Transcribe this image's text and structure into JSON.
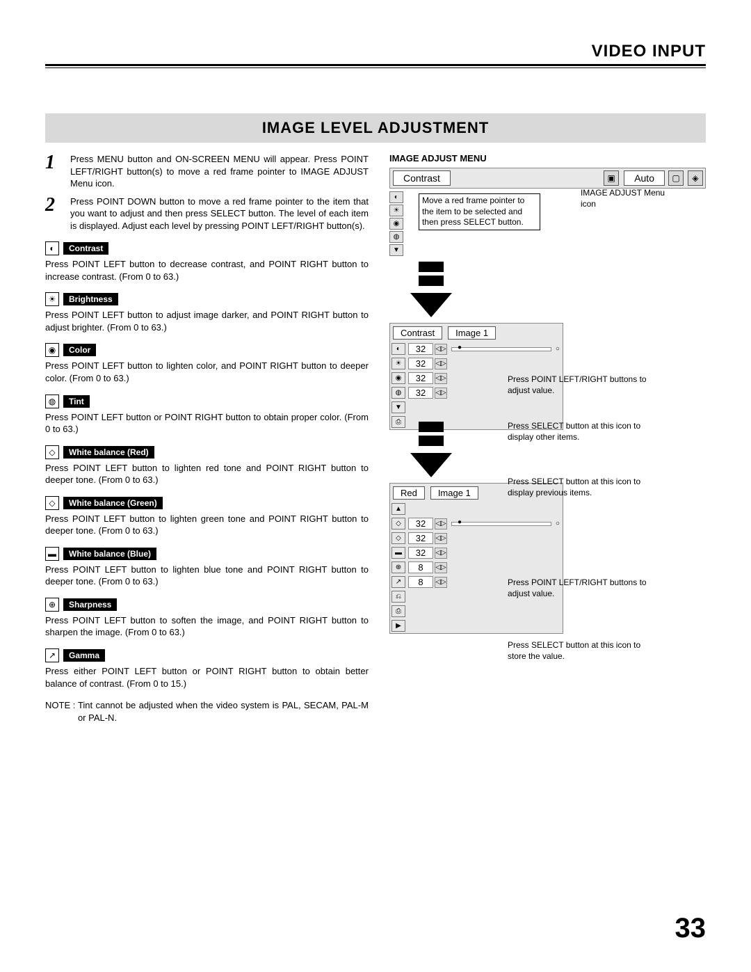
{
  "header": {
    "section": "VIDEO INPUT"
  },
  "banner": "IMAGE LEVEL ADJUSTMENT",
  "steps": [
    {
      "n": "1",
      "text": "Press MENU button and ON-SCREEN MENU will appear.  Press POINT LEFT/RIGHT button(s) to move a red frame pointer to IMAGE ADJUST Menu icon."
    },
    {
      "n": "2",
      "text": "Press POINT DOWN button to move a red frame pointer to the item that you want to adjust and then press SELECT button. The level of each item is displayed.  Adjust each level by pressing POINT LEFT/RIGHT button(s)."
    }
  ],
  "items": [
    {
      "icon": "◐",
      "label": "Contrast",
      "desc": "Press POINT LEFT button to decrease contrast, and POINT RIGHT button to increase contrast.  (From 0 to 63.)"
    },
    {
      "icon": "☀",
      "label": "Brightness",
      "desc": "Press POINT LEFT button to adjust image darker, and POINT RIGHT button to adjust brighter.  (From 0 to 63.)"
    },
    {
      "icon": "◉",
      "label": "Color",
      "desc": "Press POINT LEFT button to lighten color, and POINT RIGHT button to deeper color.  (From 0 to 63.)"
    },
    {
      "icon": "◍",
      "label": "Tint",
      "desc": "Press POINT LEFT button or POINT RIGHT button to obtain proper color.  (From 0 to 63.)"
    },
    {
      "icon": "◇",
      "label": "White balance (Red)",
      "desc": "Press POINT LEFT button to lighten red tone and POINT RIGHT button to deeper tone.  (From 0 to 63.)"
    },
    {
      "icon": "◇",
      "label": "White balance (Green)",
      "desc": "Press POINT LEFT button to lighten green tone and POINT RIGHT button to deeper tone.  (From 0 to 63.)"
    },
    {
      "icon": "▬",
      "label": "White balance (Blue)",
      "desc": "Press POINT LEFT button to lighten blue tone and POINT RIGHT button to deeper tone.  (From 0 to 63.)"
    },
    {
      "icon": "⊕",
      "label": "Sharpness",
      "desc": "Press POINT LEFT button to soften the image, and POINT RIGHT button to sharpen the image.  (From 0 to 63.)"
    },
    {
      "icon": "↗",
      "label": "Gamma",
      "desc": "Press either POINT LEFT button or POINT RIGHT button to obtain better balance of contrast.  (From 0 to 15.)"
    }
  ],
  "note": {
    "label": "NOTE : ",
    "text": "Tint cannot be adjusted when the video system is PAL, SECAM, PAL-M or PAL-N."
  },
  "right": {
    "heading": "IMAGE ADJUST MENU",
    "menubar": {
      "title": "Contrast",
      "mode": "Auto"
    },
    "callout1": "Move a red frame pointer to the item to be selected and then press SELECT button.",
    "callout2": "IMAGE ADJUST Menu icon",
    "panel1": {
      "head_left": "Contrast",
      "head_right": "Image 1",
      "rows": [
        {
          "icon": "◐",
          "val": "32"
        },
        {
          "icon": "☀",
          "val": "32"
        },
        {
          "icon": "◉",
          "val": "32"
        },
        {
          "icon": "◍",
          "val": "32"
        }
      ]
    },
    "callout3": "Press POINT LEFT/RIGHT buttons to adjust value.",
    "callout4": "Press SELECT button at this icon to display other items.",
    "callout5": "Press SELECT button at this icon to display previous items.",
    "panel2": {
      "head_left": "Red",
      "head_right": "Image 1",
      "rows": [
        {
          "icon": "◇",
          "val": "32"
        },
        {
          "icon": "◇",
          "val": "32"
        },
        {
          "icon": "▬",
          "val": "32"
        },
        {
          "icon": "⊕",
          "val": "8"
        },
        {
          "icon": "↗",
          "val": "8"
        }
      ]
    },
    "callout6": "Press POINT LEFT/RIGHT buttons to adjust value.",
    "callout7": "Press SELECT button at this icon to store the value."
  },
  "page_number": "33"
}
